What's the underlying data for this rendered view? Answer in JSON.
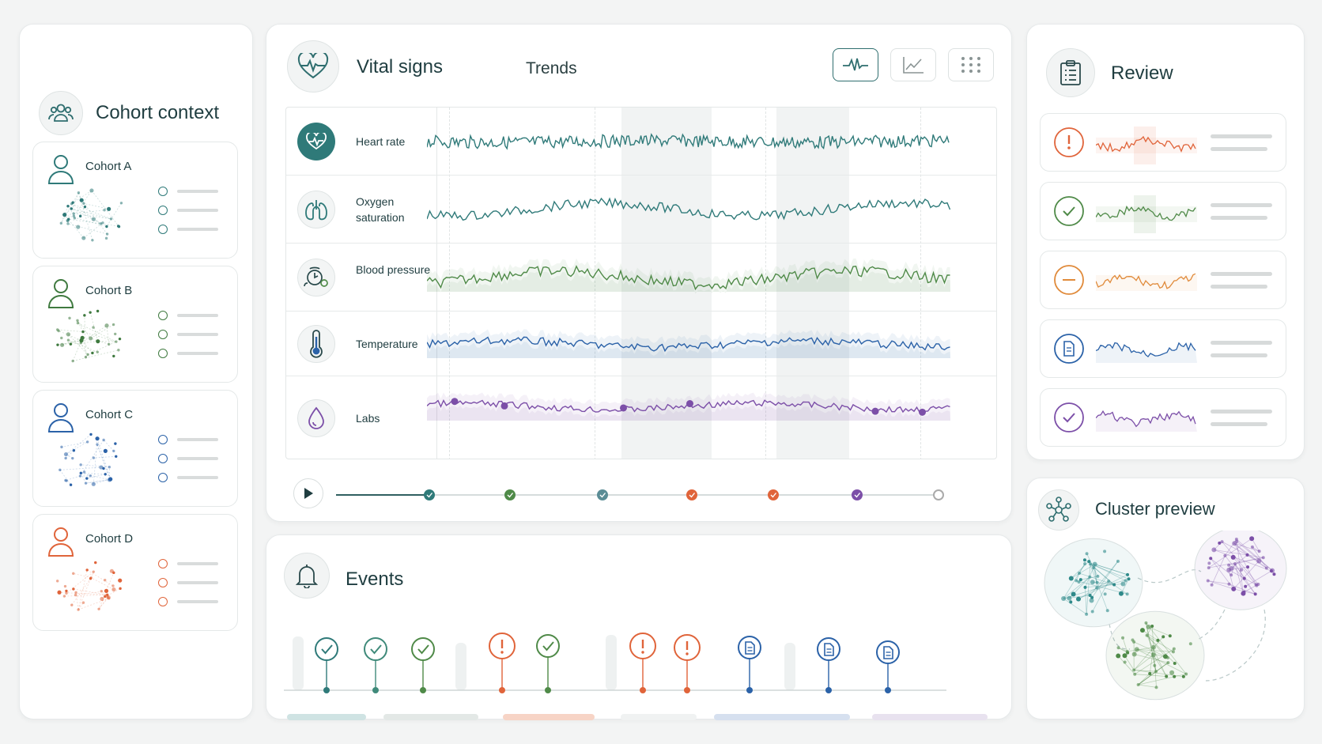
{
  "cohort_panel": {
    "title": "Cohort context",
    "icon": "people-group-icon",
    "cohorts": [
      {
        "name": "Cohort A",
        "color": "#2f7a79"
      },
      {
        "name": "Cohort B",
        "color": "#3f7a3f"
      },
      {
        "name": "Cohort C",
        "color": "#2b62a8"
      },
      {
        "name": "Cohort D",
        "color": "#e0643a"
      }
    ]
  },
  "vitals_panel": {
    "title": "Vital signs",
    "subtitle": "Trends",
    "icon": "heart-pulse-icon",
    "tools": [
      "waveform-view-icon",
      "line-chart-icon",
      "grid-dots-icon"
    ],
    "rows": [
      {
        "label": "Heart rate",
        "icon": "heart-pulse-icon",
        "color": "#2f7a79"
      },
      {
        "label": "Oxygen saturation",
        "icon": "lungs-icon",
        "color": "#2f7a79"
      },
      {
        "label": "Blood pressure",
        "icon": "blood-pressure-icon",
        "color": "#4f8a48"
      },
      {
        "label": "Temperature",
        "icon": "thermometer-icon",
        "color": "#2b62a8"
      },
      {
        "label": "Labs",
        "icon": "droplet-icon",
        "color": "#7c4fa8"
      }
    ],
    "timeline_markers": [
      "#2f7a79",
      "#4f8a48",
      "#5a8c95",
      "#e0643a",
      "#e0643a",
      "#7c4fa8",
      "#bbbbbb"
    ]
  },
  "events_panel": {
    "title": "Events",
    "icon": "bell-icon",
    "events": [
      {
        "type": "check",
        "color": "#2f7a79"
      },
      {
        "type": "check-leaf",
        "color": "#3f8a7a"
      },
      {
        "type": "check-leaf",
        "color": "#4f8a48"
      },
      {
        "type": "alert",
        "color": "#e0643a"
      },
      {
        "type": "check",
        "color": "#4f8a48"
      },
      {
        "type": "alert",
        "color": "#e0643a"
      },
      {
        "type": "alert",
        "color": "#e0643a"
      },
      {
        "type": "document",
        "color": "#2b62a8"
      },
      {
        "type": "document",
        "color": "#2b62a8"
      },
      {
        "type": "document",
        "color": "#2b62a8"
      }
    ]
  },
  "review_panel": {
    "title": "Review",
    "icon": "clipboard-icon",
    "items": [
      {
        "type": "alert",
        "color": "#e0643a"
      },
      {
        "type": "check",
        "color": "#4f8a48"
      },
      {
        "type": "minus",
        "color": "#e08a3a"
      },
      {
        "type": "document",
        "color": "#2b62a8"
      },
      {
        "type": "check",
        "color": "#7c4fa8"
      }
    ]
  },
  "cluster_panel": {
    "title": "Cluster preview",
    "icon": "network-icon",
    "clusters": [
      "#2f8a8a",
      "#7c4fa8",
      "#4f8a48"
    ]
  }
}
